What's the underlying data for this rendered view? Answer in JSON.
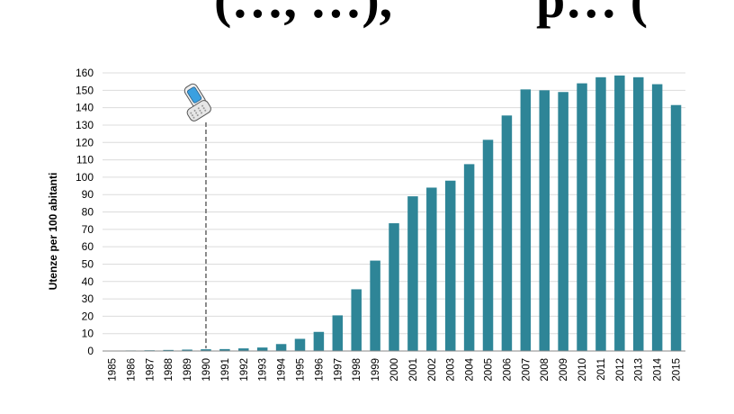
{
  "header": {
    "fragment_left": "(…, …),",
    "fragment_right": "p… ("
  },
  "chart_data": {
    "type": "bar",
    "title": "",
    "xlabel": "",
    "ylabel": "Utenze per 100 abitanti",
    "ylim": [
      0,
      160
    ],
    "yticks": [
      0,
      10,
      20,
      30,
      40,
      50,
      60,
      70,
      80,
      90,
      100,
      110,
      120,
      130,
      140,
      150,
      160
    ],
    "grid": true,
    "bar_color": "#2e8597",
    "categories": [
      "1985",
      "1986",
      "1987",
      "1988",
      "1989",
      "1990",
      "1991",
      "1992",
      "1993",
      "1994",
      "1995",
      "1996",
      "1997",
      "1998",
      "1999",
      "2000",
      "2001",
      "2002",
      "2003",
      "2004",
      "2005",
      "2006",
      "2007",
      "2008",
      "2009",
      "2010",
      "2011",
      "2012",
      "2013",
      "2014",
      "2015"
    ],
    "values": [
      0.2,
      0.3,
      0.4,
      0.6,
      0.8,
      1,
      1.1,
      1.5,
      2,
      4,
      7,
      11,
      20.5,
      35.5,
      52,
      73.5,
      89,
      94,
      98,
      107.5,
      121.5,
      135.5,
      150.5,
      150,
      149,
      154,
      157.5,
      158.5,
      157.5,
      153.5,
      141.5
    ],
    "annotation": {
      "icon": "mobile-phone-icon",
      "year": "1990",
      "connector": "dashed"
    }
  }
}
